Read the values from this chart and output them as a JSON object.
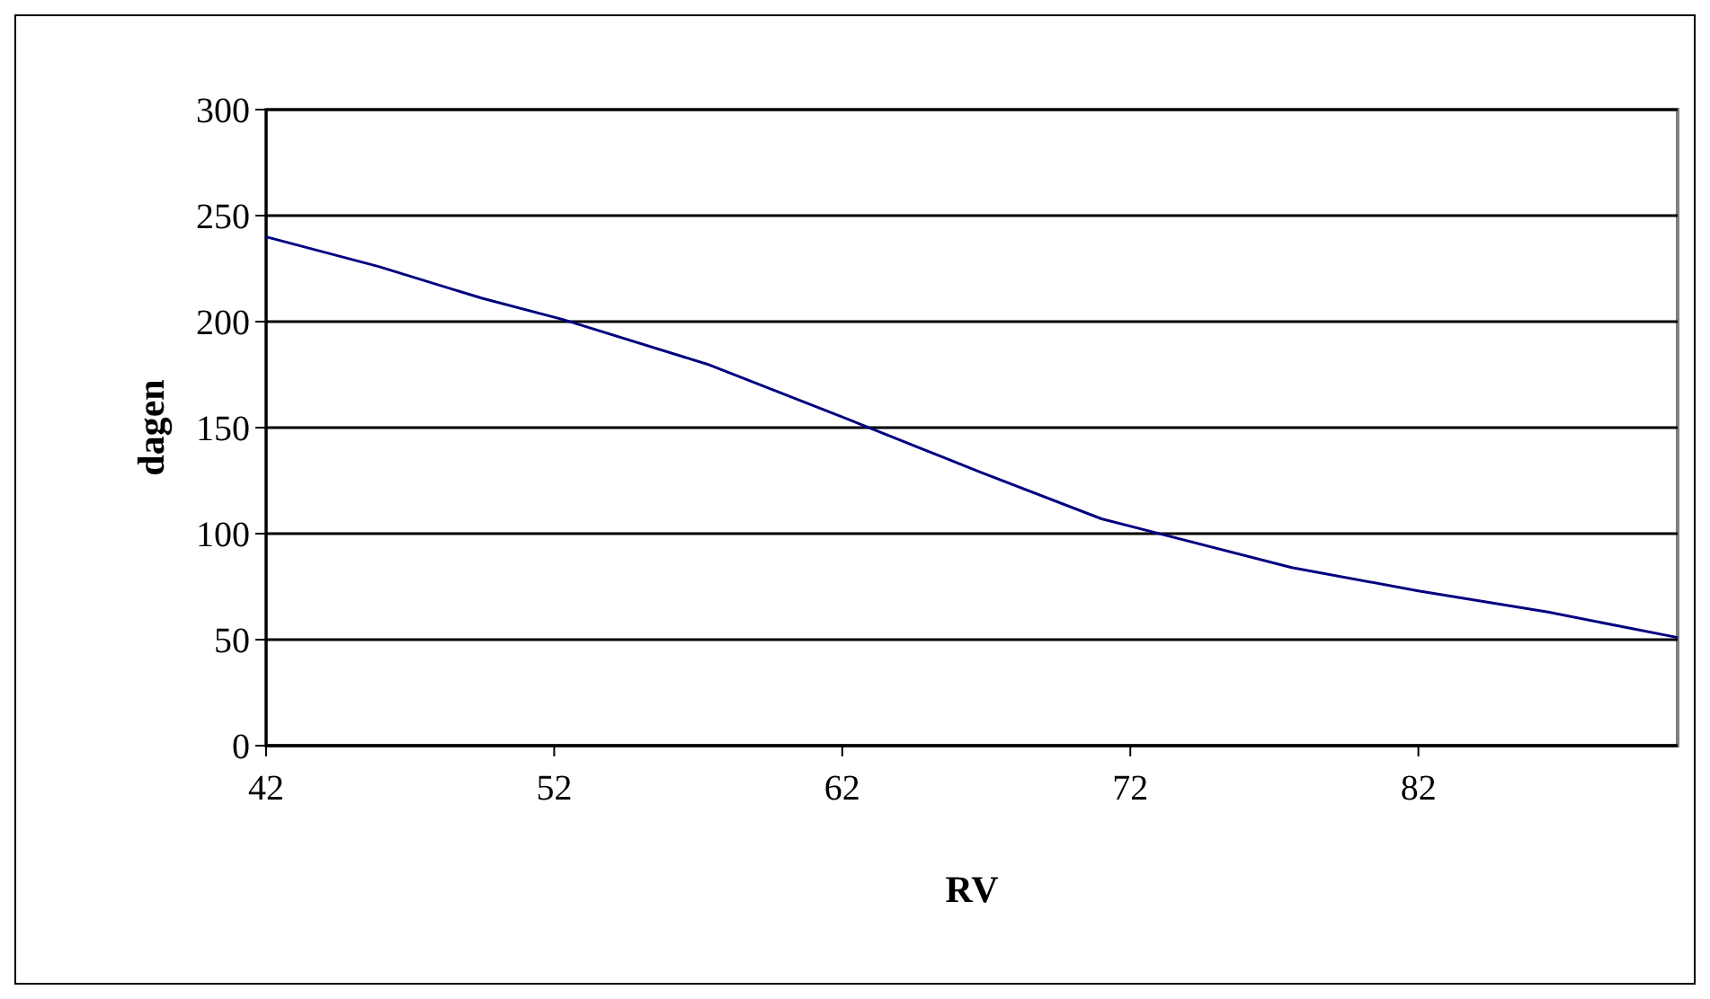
{
  "chart_data": {
    "type": "line",
    "xlabel": "RV",
    "ylabel": "dagen",
    "series": [
      {
        "color": "#000080",
        "x": [
          42,
          45.9,
          49.5,
          52.3,
          57.3,
          62,
          66.8,
          71,
          77.6,
          82,
          86.5,
          91
        ],
        "values": [
          240,
          226,
          211,
          201,
          180,
          155,
          129,
          107,
          84,
          73,
          63,
          51
        ]
      }
    ],
    "xlim": [
      42,
      91
    ],
    "xticks": [
      42,
      52,
      62,
      72,
      82
    ],
    "ylim": [
      0,
      300
    ],
    "yticks": [
      0,
      50,
      100,
      150,
      200,
      250,
      300
    ],
    "grid": "y",
    "marker": "none",
    "line_style": "solid"
  }
}
